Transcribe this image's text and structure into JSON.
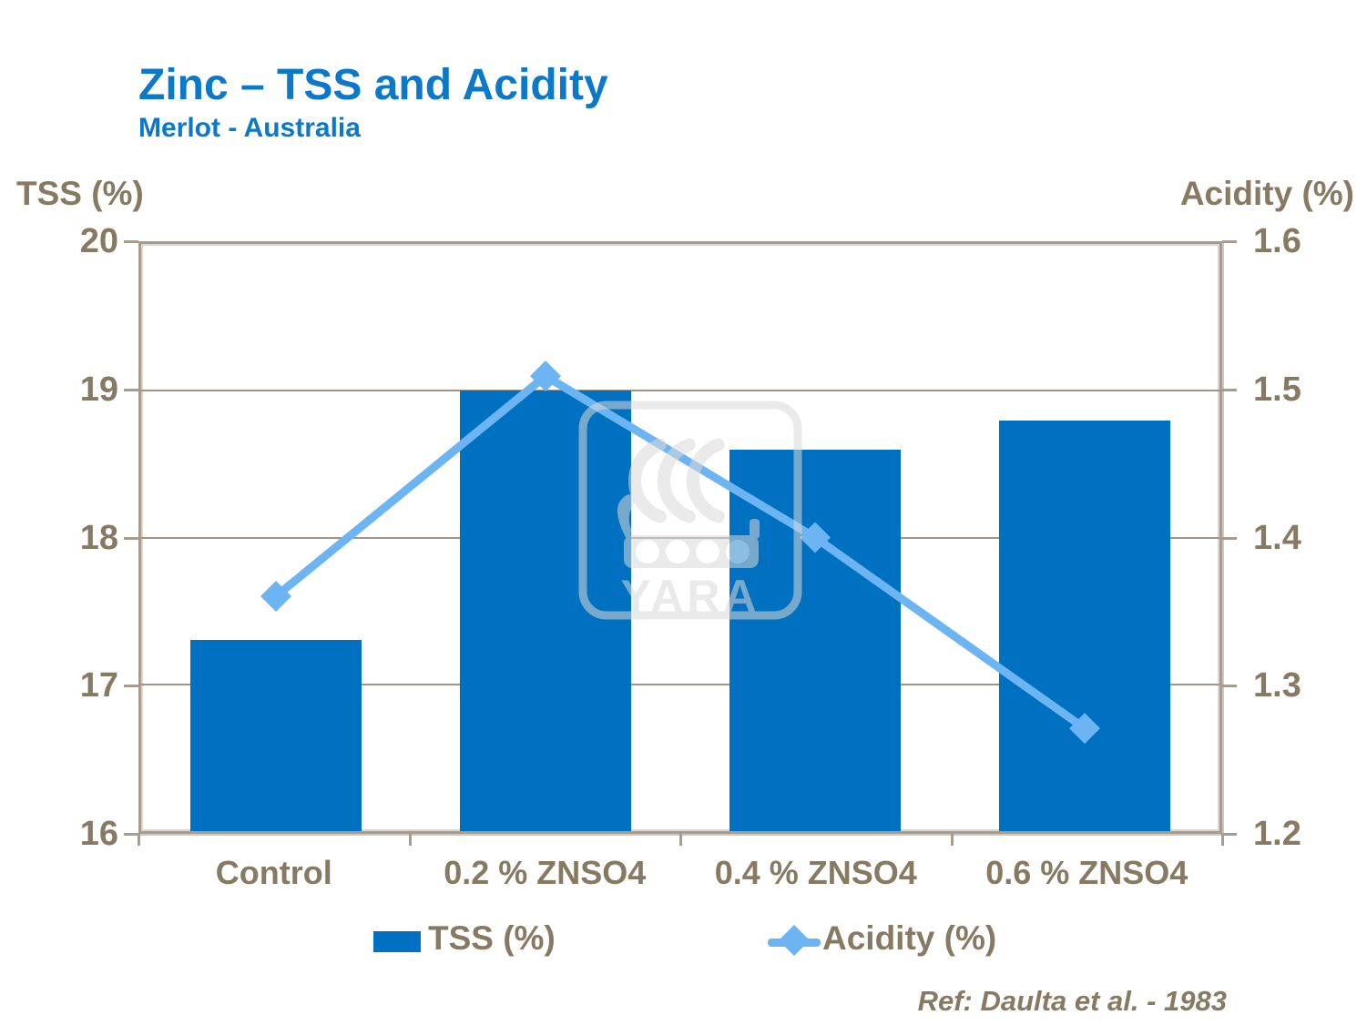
{
  "header": {
    "title": "Zinc – TSS and Acidity",
    "subtitle": "Merlot - Australia"
  },
  "footer": {
    "ref": "Ref: Daulta et al. - 1983"
  },
  "watermark": {
    "name": "yara-logo",
    "text": "YARA"
  },
  "colors": {
    "title_blue": "#0b78c8",
    "bar_blue": "#0070c0",
    "line_light_blue": "#6cb4f2",
    "text_brown": "#877a62",
    "axis_brown_gray": "#a79c8d",
    "gridline": "#a0958a",
    "watermark_gray": "#d9d9d9"
  },
  "chart_data": {
    "type": "bar",
    "subtype": "combo bar + line, dual y-axes",
    "title": "Zinc – TSS and Acidity",
    "subtitle": "Merlot - Australia",
    "categories": [
      "Control",
      "0.2 % ZNSO4",
      "0.4 % ZNSO4",
      "0.6 % ZNSO4"
    ],
    "series": [
      {
        "name": "TSS (%)",
        "type": "bar",
        "axis": "left",
        "values": [
          17.3,
          19.0,
          18.6,
          18.8
        ],
        "color": "#0070c0"
      },
      {
        "name": "Acidity (%)",
        "type": "line",
        "axis": "right",
        "marker": "diamond",
        "values": [
          1.36,
          1.51,
          1.4,
          1.27
        ],
        "color": "#6cb4f2"
      }
    ],
    "left_axis": {
      "title": "TSS (%)",
      "min": 16,
      "max": 20,
      "ticks": [
        20,
        19,
        18,
        17,
        16
      ],
      "gridlines": [
        19,
        18,
        17
      ]
    },
    "right_axis": {
      "title": "Acidity (%)",
      "min": 1.2,
      "max": 1.6,
      "ticks": [
        1.6,
        1.5,
        1.4,
        1.3,
        1.2
      ]
    },
    "grid": "horizontal major gridlines on",
    "legend_position": "bottom"
  }
}
